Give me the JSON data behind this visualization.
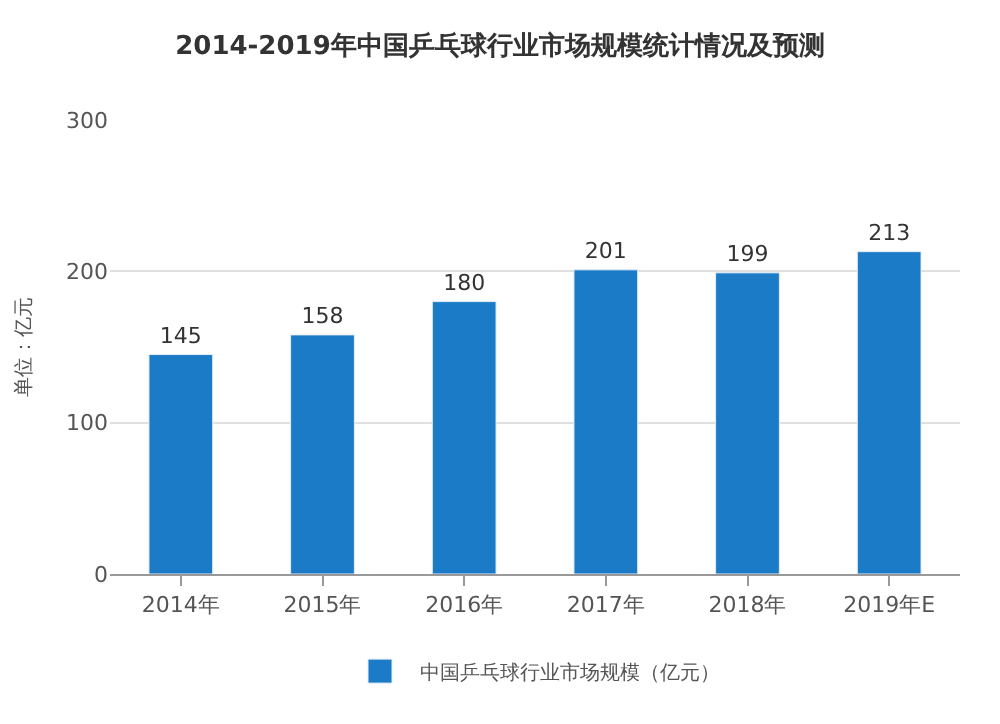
{
  "chart_data": {
    "type": "bar",
    "title": "2014-2019年中国乒乓球行业市场规模统计情况及预测",
    "ylabel": "单位：亿元",
    "categories": [
      "2014年",
      "2015年",
      "2016年",
      "2017年",
      "2018年",
      "2019年E"
    ],
    "series": [
      {
        "name": "中国乒乓球行业市场规模（亿元）",
        "color": "#1b7bc6",
        "values": [
          145,
          158,
          180,
          201,
          199,
          213
        ]
      }
    ],
    "ylim": [
      0,
      300
    ],
    "yticks": [
      0,
      100,
      200,
      300
    ],
    "grid": "y",
    "legend": "bottom",
    "data_labels": true
  }
}
